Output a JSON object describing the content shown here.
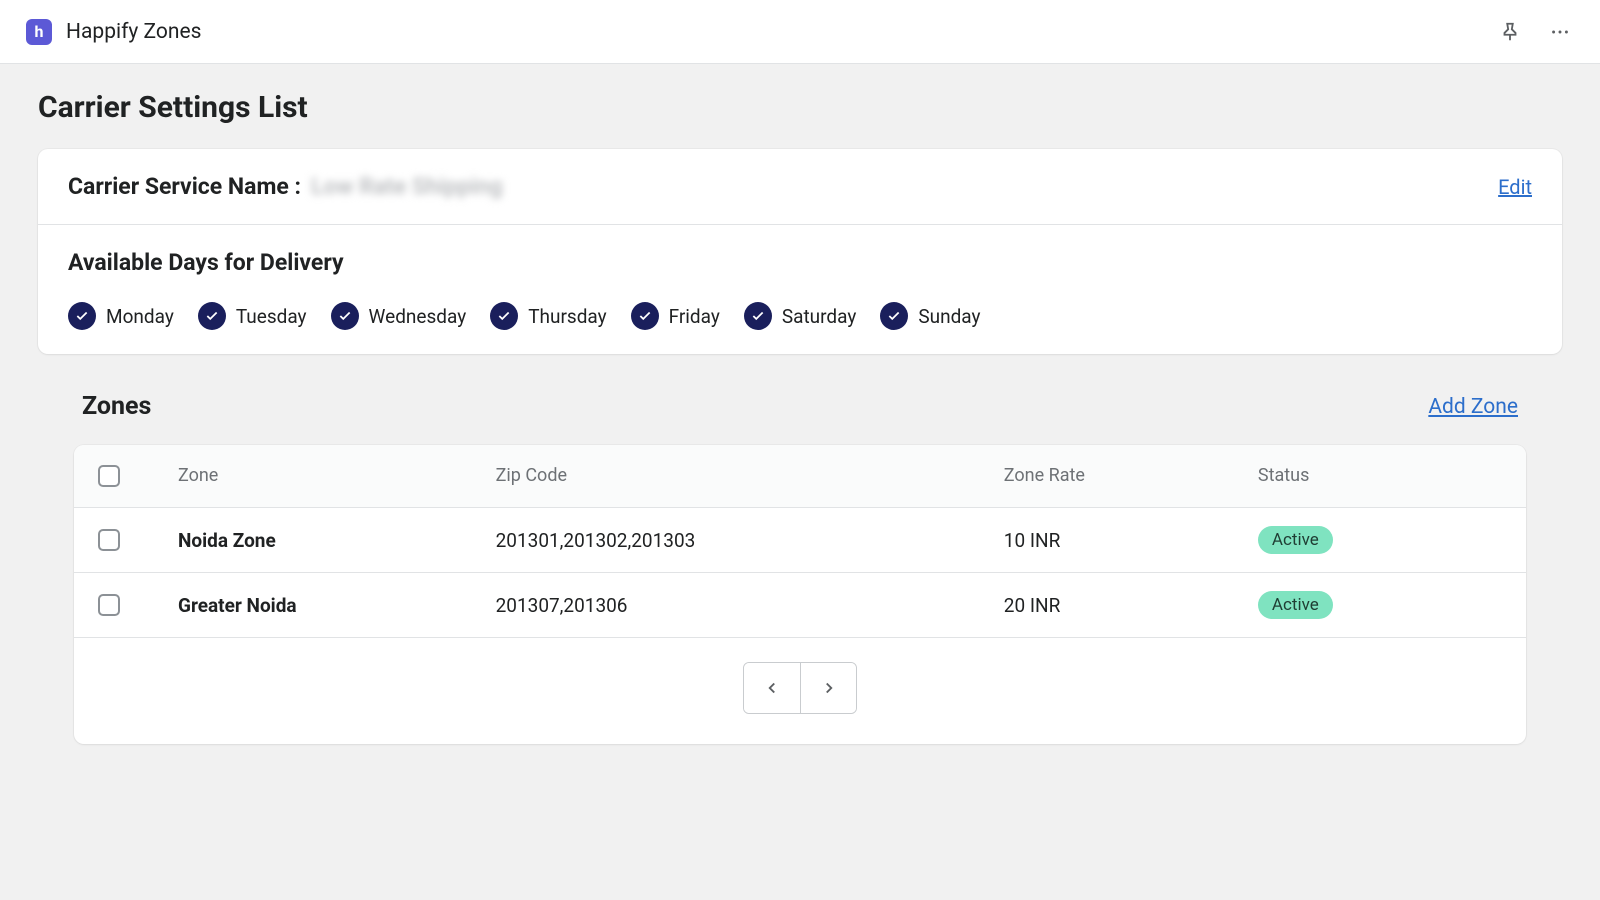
{
  "header": {
    "app_name": "Happify Zones",
    "app_icon_letter": "h"
  },
  "page_title": "Carrier Settings List",
  "carrier_service": {
    "label": "Carrier Service Name :",
    "value": "Low Rate Shipping",
    "edit_label": "Edit"
  },
  "available_days": {
    "title": "Available Days for Delivery",
    "days": [
      "Monday",
      "Tuesday",
      "Wednesday",
      "Thursday",
      "Friday",
      "Saturday",
      "Sunday"
    ]
  },
  "zones": {
    "title": "Zones",
    "add_label": "Add Zone",
    "columns": {
      "zone": "Zone",
      "zip": "Zip Code",
      "rate": "Zone Rate",
      "status": "Status"
    },
    "rows": [
      {
        "zone": "Noida Zone",
        "zip": "201301,201302,201303",
        "rate": "10 INR",
        "status": "Active"
      },
      {
        "zone": "Greater Noida",
        "zip": "201307,201306",
        "rate": "20 INR",
        "status": "Active"
      }
    ]
  },
  "colors": {
    "accent": "#5c59d6",
    "check_bg": "#1a1f5c",
    "link": "#2c6ecb",
    "badge_bg": "#7fe3c0"
  }
}
